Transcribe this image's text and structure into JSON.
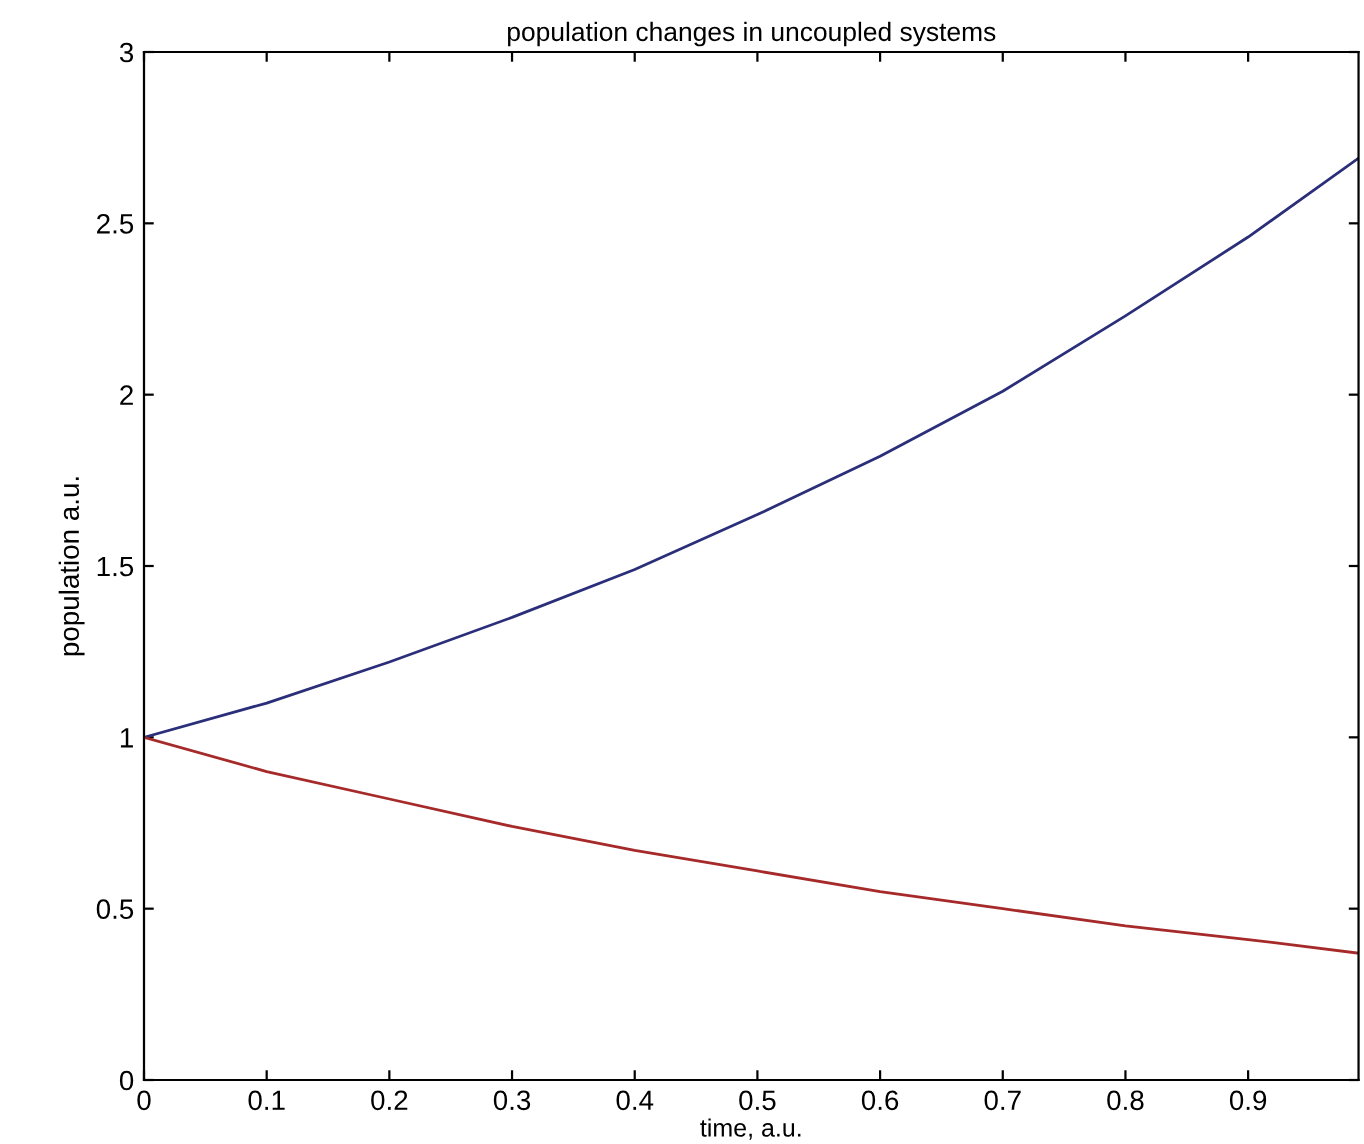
{
  "chart_data": {
    "type": "line",
    "title": "population changes in uncoupled systems",
    "xlabel": "time, a.u.",
    "ylabel": "population a.u.",
    "x": [
      0,
      0.1,
      0.2,
      0.3,
      0.4,
      0.5,
      0.6,
      0.7,
      0.8,
      0.9,
      0.99
    ],
    "series": [
      {
        "color": "#2b2f7a",
        "values": [
          1,
          1.1,
          1.22,
          1.35,
          1.49,
          1.65,
          1.82,
          2.01,
          2.23,
          2.46,
          2.69
        ]
      },
      {
        "color": "#a62a2a",
        "values": [
          1,
          0.9,
          0.82,
          0.74,
          0.67,
          0.61,
          0.55,
          0.5,
          0.45,
          0.41,
          0.37
        ]
      }
    ],
    "xlim": [
      0,
      0.99
    ],
    "ylim": [
      0,
      3
    ],
    "xticks": [
      0,
      0.1,
      0.2,
      0.3,
      0.4,
      0.5,
      0.6,
      0.7,
      0.8,
      0.9
    ],
    "yticks": [
      0,
      0.5,
      1,
      1.5,
      2,
      2.5,
      3
    ],
    "grid": false,
    "marker": "none",
    "line_style": "solid"
  }
}
